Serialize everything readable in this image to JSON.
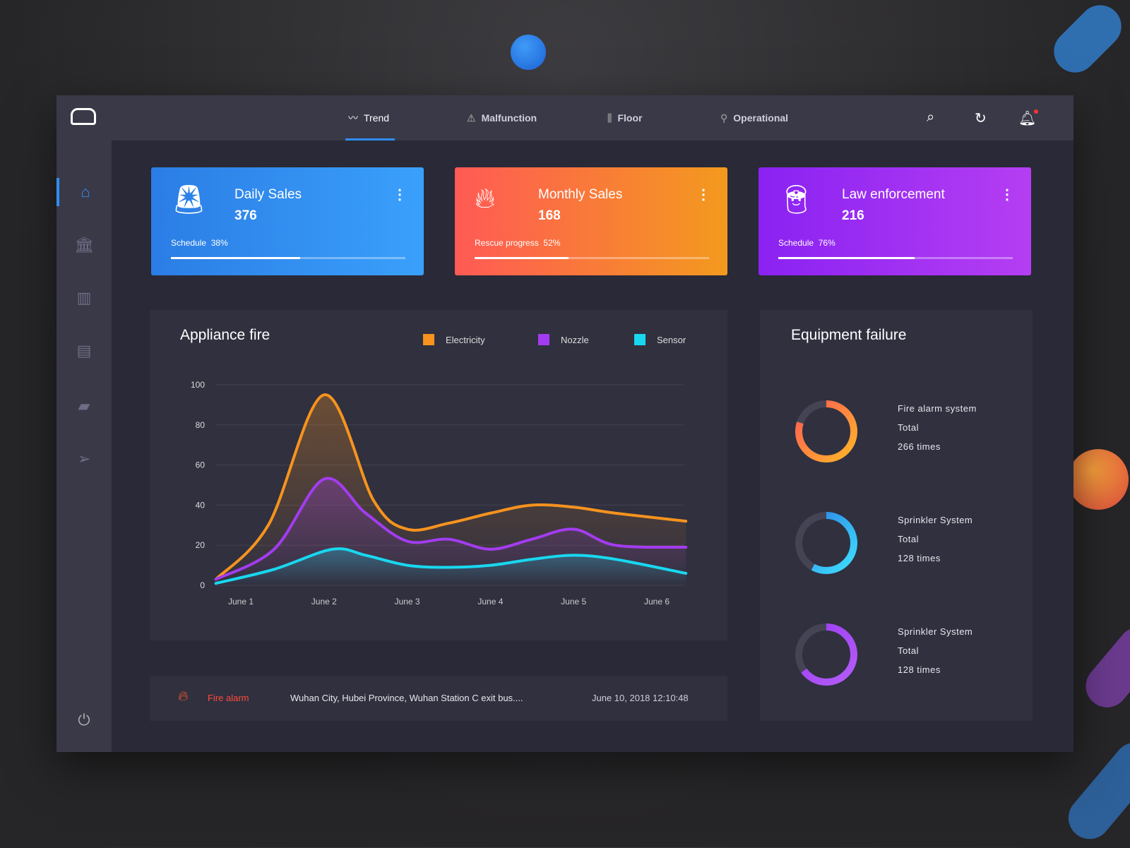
{
  "nav": {
    "tabs": [
      {
        "label": "Trend",
        "icon": "trend-icon"
      },
      {
        "label": "Malfunction",
        "icon": "warning-icon"
      },
      {
        "label": "Floor",
        "icon": "floor-icon"
      },
      {
        "label": "Operational",
        "icon": "location-icon"
      }
    ],
    "active": "Trend"
  },
  "sidebar": {
    "items": [
      "home",
      "bank",
      "chart",
      "window",
      "chat",
      "send"
    ],
    "active": "home"
  },
  "cards": [
    {
      "title": "Daily Sales",
      "value": "376",
      "progress_label": "Schedule",
      "progress": "38%",
      "progress_value": 55,
      "icon": "alarm-light-icon",
      "colors": [
        "#2b7de5",
        "#3aa0fb"
      ]
    },
    {
      "title": "Monthly Sales",
      "value": "168",
      "progress_label": "Rescue progress",
      "progress": "52%",
      "progress_value": 40,
      "icon": "fire-icon",
      "colors": [
        "#ff5a55",
        "#f39a1e"
      ]
    },
    {
      "title": "Law enforcement",
      "value": "216",
      "progress_label": "Schedule",
      "progress": "76%",
      "progress_value": 58,
      "icon": "police-cap-icon",
      "colors": [
        "#8a22f2",
        "#b53ef2"
      ]
    }
  ],
  "chart_panel": {
    "title": "Appliance fire"
  },
  "chart_data": {
    "type": "line",
    "title": "Appliance fire",
    "categories": [
      "June 1",
      "June 2",
      "June 3",
      "June 4",
      "June 5",
      "June 6"
    ],
    "ylim": [
      0,
      100
    ],
    "yticks": [
      0,
      20,
      40,
      60,
      80,
      100
    ],
    "grid": true,
    "legend": "top-right",
    "series": [
      {
        "name": "Electricity",
        "color": "#f7931e",
        "points": [
          [
            0.7,
            3
          ],
          [
            1.33,
            30
          ],
          [
            2,
            95
          ],
          [
            2.6,
            42
          ],
          [
            3,
            28
          ],
          [
            3.5,
            31
          ],
          [
            4,
            36
          ],
          [
            4.5,
            40
          ],
          [
            5,
            39
          ],
          [
            5.5,
            36
          ],
          [
            6.35,
            32
          ]
        ]
      },
      {
        "name": "Nozzle",
        "color": "#a33cf0",
        "points": [
          [
            0.7,
            3
          ],
          [
            1.4,
            18
          ],
          [
            2,
            53
          ],
          [
            2.5,
            36
          ],
          [
            3,
            22
          ],
          [
            3.5,
            23
          ],
          [
            4,
            18
          ],
          [
            4.5,
            23
          ],
          [
            5,
            28
          ],
          [
            5.5,
            20
          ],
          [
            6.35,
            19
          ]
        ]
      },
      {
        "name": "Sensor",
        "color": "#18d8f0",
        "points": [
          [
            0.7,
            1
          ],
          [
            1.4,
            8
          ],
          [
            2.1,
            18
          ],
          [
            2.5,
            15
          ],
          [
            3,
            10
          ],
          [
            3.5,
            9
          ],
          [
            4,
            10
          ],
          [
            4.5,
            13
          ],
          [
            5,
            15
          ],
          [
            5.5,
            13
          ],
          [
            6.35,
            6
          ]
        ]
      }
    ]
  },
  "alarm": {
    "type": "Fire alarm",
    "location": "Wuhan City, Hubei Province, Wuhan Station C exit bus....",
    "time": "June 10, 2018 12:10:48"
  },
  "equipment": {
    "title": "Equipment failure",
    "items": [
      {
        "name": "Fire alarm system",
        "total_label": "Total",
        "count": "266 times",
        "fraction": 0.8,
        "colors": [
          "#ff5a55",
          "#ffb627"
        ]
      },
      {
        "name": "Sprinkler System",
        "total_label": "Total",
        "count": "128 times",
        "fraction": 0.58,
        "colors": [
          "#2b7de5",
          "#3ee0ff"
        ]
      },
      {
        "name": "Sprinkler System",
        "total_label": "Total",
        "count": "128 times",
        "fraction": 0.65,
        "colors": [
          "#9b3cf5",
          "#b45cf7"
        ]
      }
    ]
  }
}
